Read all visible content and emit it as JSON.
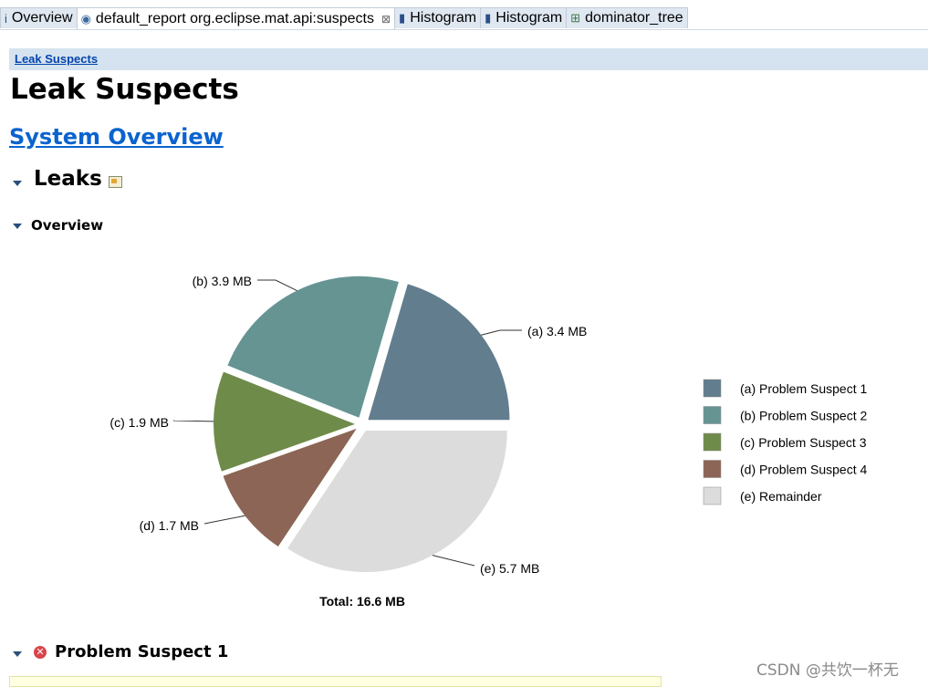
{
  "tabs": [
    {
      "icon": "info-icon",
      "glyph": "i",
      "label": "Overview",
      "active": false,
      "closable": false
    },
    {
      "icon": "report-icon",
      "glyph": "◉",
      "label": "default_report  org.eclipse.mat.api:suspects",
      "active": true,
      "closable": true
    },
    {
      "icon": "histogram-icon",
      "glyph": "▮",
      "label": "Histogram",
      "active": false,
      "closable": false
    },
    {
      "icon": "histogram-icon",
      "glyph": "▮",
      "label": "Histogram",
      "active": false,
      "closable": false
    },
    {
      "icon": "dominator-tree-icon",
      "glyph": "⊞",
      "label": "dominator_tree",
      "active": false,
      "closable": false
    }
  ],
  "tab_close_glyph": "⊠",
  "breadcrumb": "Leak Suspects",
  "page_title": "Leak Suspects",
  "system_overview_link": "System Overview",
  "section_leaks": "Leaks",
  "subsection_overview": "Overview",
  "problem_suspect_heading": "Problem Suspect 1",
  "error_glyph": "✕",
  "watermark": "CSDN @共饮一杯无",
  "chart_data": {
    "type": "pie",
    "total_label": "Total: 16.6 MB",
    "slices": [
      {
        "key": "(a)",
        "legend": "Problem Suspect 1",
        "value": 3.4,
        "label": "3.4 MB",
        "color": "#627d8e"
      },
      {
        "key": "(b)",
        "legend": "Problem Suspect 2",
        "value": 3.9,
        "label": "3.9 MB",
        "color": "#659493"
      },
      {
        "key": "(c)",
        "legend": "Problem Suspect 3",
        "value": 1.9,
        "label": "1.9 MB",
        "color": "#6f8b4a"
      },
      {
        "key": "(d)",
        "legend": "Problem Suspect 4",
        "value": 1.7,
        "label": "1.7 MB",
        "color": "#8c6556"
      },
      {
        "key": "(e)",
        "legend": "Remainder",
        "value": 5.7,
        "label": "5.7 MB",
        "color": "#dcdcdc"
      }
    ],
    "legend_placement": "right"
  }
}
